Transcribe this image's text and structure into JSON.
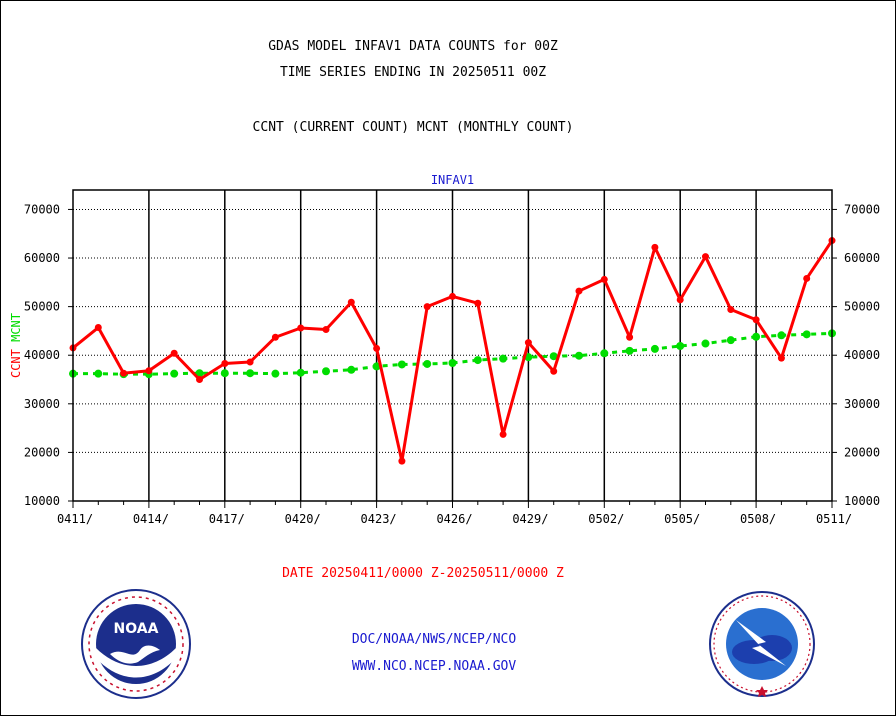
{
  "titles": {
    "line1": "GDAS MODEL INFAV1 DATA COUNTS for 00Z",
    "line2": "TIME SERIES ENDING IN 20250511 00Z",
    "line3": "CCNT (CURRENT COUNT) MCNT (MONTHLY COUNT)"
  },
  "footer": {
    "date_range": "DATE 20250411/0000 Z-20250511/0000 Z",
    "credit_line1": "DOC/NOAA/NWS/NCEP/NCO",
    "credit_line2": "WWW.NCO.NCEP.NOAA.GOV"
  },
  "logos": {
    "left": {
      "icon": "noaa-logo",
      "text": "NOAA"
    },
    "right": {
      "icon": "national-weather-service-logo"
    }
  },
  "colors": {
    "ccnt": "#ff0000",
    "mcnt": "#00dd00",
    "panel_title": "#1a1ad0",
    "axis": "#000000"
  },
  "chart_data": {
    "type": "line",
    "panel_title": "INFAV1",
    "ylabel": {
      "ccnt": "CCNT",
      "mcnt": "MCNT"
    },
    "ylim": [
      10000,
      74000
    ],
    "yticks": [
      10000,
      20000,
      30000,
      40000,
      50000,
      60000,
      70000
    ],
    "ytick_labels": [
      "10000",
      "20000",
      "30000",
      "40000",
      "50000",
      "60000",
      "70000"
    ],
    "xticks": [
      "0411/",
      "0414/",
      "0417/",
      "0420/",
      "0423/",
      "0426/",
      "0429/",
      "0502/",
      "0505/",
      "0508/",
      "0511/"
    ],
    "x": [
      "0411",
      "0412",
      "0413",
      "0414",
      "0415",
      "0416",
      "0417",
      "0418",
      "0419",
      "0420",
      "0421",
      "0422",
      "0423",
      "0424",
      "0425",
      "0426",
      "0427",
      "0428",
      "0429",
      "0430",
      "0501",
      "0502",
      "0503",
      "0504",
      "0505",
      "0506",
      "0507",
      "0508",
      "0509",
      "0510",
      "0511"
    ],
    "grid": true,
    "series": [
      {
        "name": "CCNT",
        "values": [
          41500,
          45700,
          36300,
          36800,
          40400,
          35000,
          38300,
          38600,
          43700,
          45600,
          45300,
          50900,
          41400,
          18200,
          50000,
          52100,
          50700,
          23700,
          42600,
          36700,
          53200,
          55600,
          43700,
          62200,
          51400,
          60300,
          49400,
          47300,
          39400,
          55800,
          63600
        ]
      },
      {
        "name": "MCNT",
        "values": [
          36200,
          36200,
          36100,
          36100,
          36200,
          36300,
          36300,
          36300,
          36200,
          36400,
          36700,
          37000,
          37700,
          38100,
          38200,
          38400,
          39000,
          39300,
          39600,
          39800,
          39900,
          40400,
          40900,
          41300,
          41900,
          42400,
          43100,
          43800,
          44100,
          44300,
          44500
        ]
      }
    ]
  }
}
